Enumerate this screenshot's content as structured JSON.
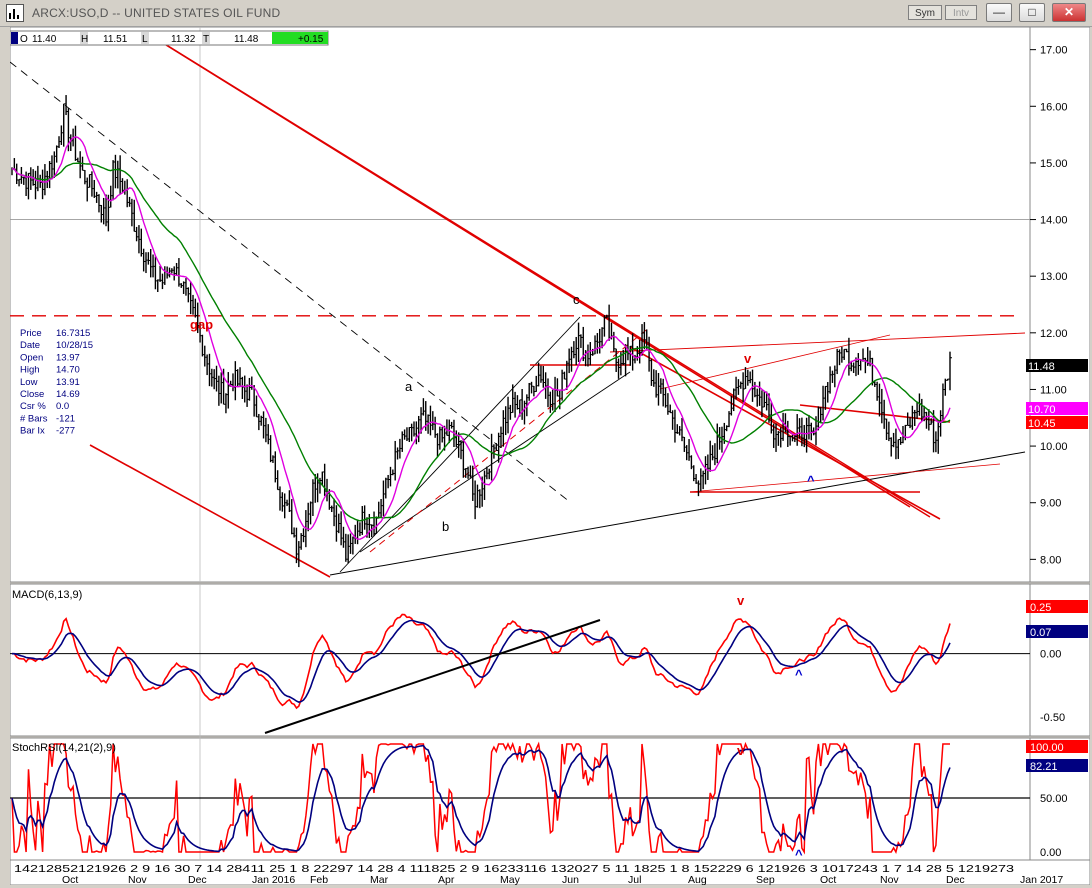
{
  "window": {
    "title": "ARCX:USO,D -- UNITED STATES OIL FUND",
    "sym_button": "Sym",
    "intv_button": "Intv",
    "minimize_glyph": "—",
    "restore_glyph": "□",
    "close_glyph": "✕"
  },
  "ohlc_bar": {
    "o_label": "O",
    "o_value": "11.40",
    "h_label": "H",
    "h_value": "11.51",
    "l_label": "L",
    "l_value": "11.32",
    "c_label": "T",
    "c_value": "11.48",
    "change": "+0.15"
  },
  "data_window": {
    "rows": [
      {
        "label": "Price",
        "value": "16.7315"
      },
      {
        "label": "Date",
        "value": "10/28/15"
      },
      {
        "label": "Open",
        "value": "13.97"
      },
      {
        "label": "High",
        "value": "14.70"
      },
      {
        "label": "Low",
        "value": "13.91"
      },
      {
        "label": "Close",
        "value": "14.69"
      },
      {
        "label": "Csr %",
        "value": "0.0"
      },
      {
        "label": "# Bars",
        "value": "-121"
      },
      {
        "label": "Bar Ix",
        "value": "-277"
      }
    ]
  },
  "colors": {
    "price": "#000000",
    "ma_fast": "#e000e0",
    "ma_slow": "#008000",
    "trendline": "#e00000",
    "macd": "#ff0000",
    "signal": "#000080",
    "stoch_fast": "#ff0000",
    "stoch_slow": "#000080"
  },
  "chart_data": [
    {
      "type": "ohlc",
      "name": "price",
      "ylim": [
        7.6,
        17.4
      ],
      "yticks": [
        "17.00",
        "16.00",
        "15.00",
        "14.00",
        "13.00",
        "12.00",
        "11.00",
        "10.00",
        "9.00",
        "8.00"
      ],
      "ytick_values": [
        17,
        16,
        15,
        14,
        13,
        12,
        11,
        10,
        9,
        8
      ],
      "x_index_range": [
        0,
        300
      ],
      "series_close_path": [
        [
          0,
          14.9
        ],
        [
          6,
          14.7
        ],
        [
          12,
          14.6
        ],
        [
          18,
          15.1
        ],
        [
          22,
          15.9
        ],
        [
          25,
          15.4
        ],
        [
          30,
          14.8
        ],
        [
          35,
          14.5
        ],
        [
          40,
          14.0
        ],
        [
          43,
          14.9
        ],
        [
          47,
          14.6
        ],
        [
          52,
          13.9
        ],
        [
          56,
          13.4
        ],
        [
          60,
          13.0
        ],
        [
          64,
          12.9
        ],
        [
          68,
          13.2
        ],
        [
          72,
          12.9
        ],
        [
          75,
          12.5
        ],
        [
          78,
          12.2
        ],
        [
          82,
          11.6
        ],
        [
          86,
          11.1
        ],
        [
          90,
          10.9
        ],
        [
          94,
          11.2
        ],
        [
          98,
          11.0
        ],
        [
          102,
          10.9
        ],
        [
          106,
          10.4
        ],
        [
          110,
          9.8
        ],
        [
          114,
          9.2
        ],
        [
          118,
          8.7
        ],
        [
          121,
          8.2
        ],
        [
          124,
          8.6
        ],
        [
          128,
          9.3
        ],
        [
          131,
          9.6
        ],
        [
          135,
          9.0
        ],
        [
          139,
          8.5
        ],
        [
          142,
          8.0
        ],
        [
          146,
          8.5
        ],
        [
          150,
          8.8
        ],
        [
          154,
          8.6
        ],
        [
          158,
          9.2
        ],
        [
          162,
          9.7
        ],
        [
          166,
          10.1
        ],
        [
          170,
          10.2
        ],
        [
          174,
          10.5
        ],
        [
          178,
          10.3
        ],
        [
          182,
          10.1
        ],
        [
          186,
          10.3
        ],
        [
          190,
          9.9
        ],
        [
          193,
          9.6
        ],
        [
          196,
          9.0
        ],
        [
          200,
          9.4
        ],
        [
          204,
          9.9
        ],
        [
          208,
          10.4
        ],
        [
          212,
          10.7
        ],
        [
          216,
          10.7
        ],
        [
          220,
          11.0
        ],
        [
          224,
          11.3
        ],
        [
          228,
          10.9
        ],
        [
          232,
          10.9
        ],
        [
          236,
          11.6
        ],
        [
          240,
          11.9
        ],
        [
          244,
          11.6
        ],
        [
          248,
          11.8
        ],
        [
          252,
          12.2
        ],
        [
          256,
          11.5
        ],
        [
          260,
          11.6
        ],
        [
          264,
          11.6
        ],
        [
          268,
          11.9
        ],
        [
          272,
          11.1
        ],
        [
          276,
          10.9
        ],
        [
          280,
          10.5
        ],
        [
          284,
          10.1
        ],
        [
          288,
          9.7
        ],
        [
          292,
          9.3
        ],
        [
          296,
          9.7
        ],
        [
          300,
          10.1
        ]
      ],
      "series_close_path_2": [
        [
          0,
          10.1
        ],
        [
          4,
          10.6
        ],
        [
          8,
          11.0
        ],
        [
          12,
          11.3
        ],
        [
          16,
          10.9
        ],
        [
          20,
          10.7
        ],
        [
          24,
          10.2
        ],
        [
          28,
          10.4
        ],
        [
          32,
          10.1
        ],
        [
          36,
          10.3
        ],
        [
          40,
          10.1
        ],
        [
          44,
          10.9
        ],
        [
          48,
          11.3
        ],
        [
          52,
          11.7
        ],
        [
          56,
          11.5
        ],
        [
          60,
          11.6
        ],
        [
          64,
          11.4
        ],
        [
          68,
          10.9
        ],
        [
          72,
          10.2
        ],
        [
          76,
          10.0
        ],
        [
          80,
          10.3
        ],
        [
          84,
          10.7
        ],
        [
          88,
          10.5
        ],
        [
          92,
          10.1
        ],
        [
          95,
          10.9
        ],
        [
          98,
          11.48
        ]
      ],
      "annotations": [
        {
          "text": "gap",
          "x": 61,
          "y": 12.3,
          "color": "#e00000"
        },
        {
          "text": "a",
          "x": 132,
          "y": 11.0,
          "color": "#000000"
        },
        {
          "text": "b",
          "x": 144,
          "y": 8.7,
          "color": "#000000"
        },
        {
          "text": "c",
          "x": 186,
          "y": 12.6,
          "color": "#000000"
        },
        {
          "text": "v",
          "x": 242,
          "y": 11.7,
          "color": "#e00000"
        },
        {
          "text": "^",
          "x": 264,
          "y": 9.3,
          "color": "#0000cc"
        }
      ],
      "price_labels": [
        {
          "text": "11.48",
          "bg": "#000000",
          "fg": "#ffffff"
        },
        {
          "text": "10.70",
          "bg": "#ff00ff",
          "fg": "#ffffff"
        },
        {
          "text": "10.45",
          "bg": "#ff0000",
          "fg": "#ffffff"
        }
      ],
      "horizontal_levels": [
        12.3,
        14.0
      ]
    },
    {
      "type": "line",
      "name": "MACD(6,13,9)",
      "title": "MACD(6,13,9)",
      "ylim": [
        -0.65,
        0.55
      ],
      "yticks": [
        "0.00",
        "-0.50"
      ],
      "ytick_values": [
        0.0,
        -0.5
      ],
      "zero_line": 0,
      "series": [
        {
          "name": "MACD",
          "color": "#ff0000",
          "last_label": "0.25"
        },
        {
          "name": "Signal",
          "color": "#000080",
          "last_label": "0.07"
        }
      ],
      "annotations": [
        {
          "text": "v",
          "color": "#e00000"
        },
        {
          "text": "^",
          "color": "#0000cc"
        }
      ]
    },
    {
      "type": "line",
      "name": "StochRSI(14,21(2),9)",
      "title": "StochRSI(14,21(2),9)",
      "ylim": [
        0,
        100
      ],
      "yticks": [
        "50.00",
        "0.00"
      ],
      "ytick_values": [
        50,
        0
      ],
      "mid_line": 50,
      "series": [
        {
          "name": "StochRSI",
          "color": "#ff0000",
          "last_label": "100.00"
        },
        {
          "name": "Signal",
          "color": "#000080",
          "last_label": "82.21"
        }
      ],
      "annotations": [
        {
          "text": "v",
          "color": "#e00000"
        },
        {
          "text": "^",
          "color": "#0000cc"
        }
      ]
    }
  ],
  "x_axis": {
    "day_ticks": "14212852121926 2 9 16 30 7 14 28411 25 1 8 22297 14 28 4 111825 2 9 16233116 132027 5 11 1825 1 8 152229 6 121926 3 1017243 1 7 14 28 5 1219273",
    "months": [
      "Oct",
      "Nov",
      "Dec",
      "Jan 2016",
      "Feb",
      "Mar",
      "Apr",
      "May",
      "Jun",
      "Jul",
      "Aug",
      "Sep",
      "Oct",
      "Nov",
      "Dec",
      "Jan 2017"
    ]
  }
}
